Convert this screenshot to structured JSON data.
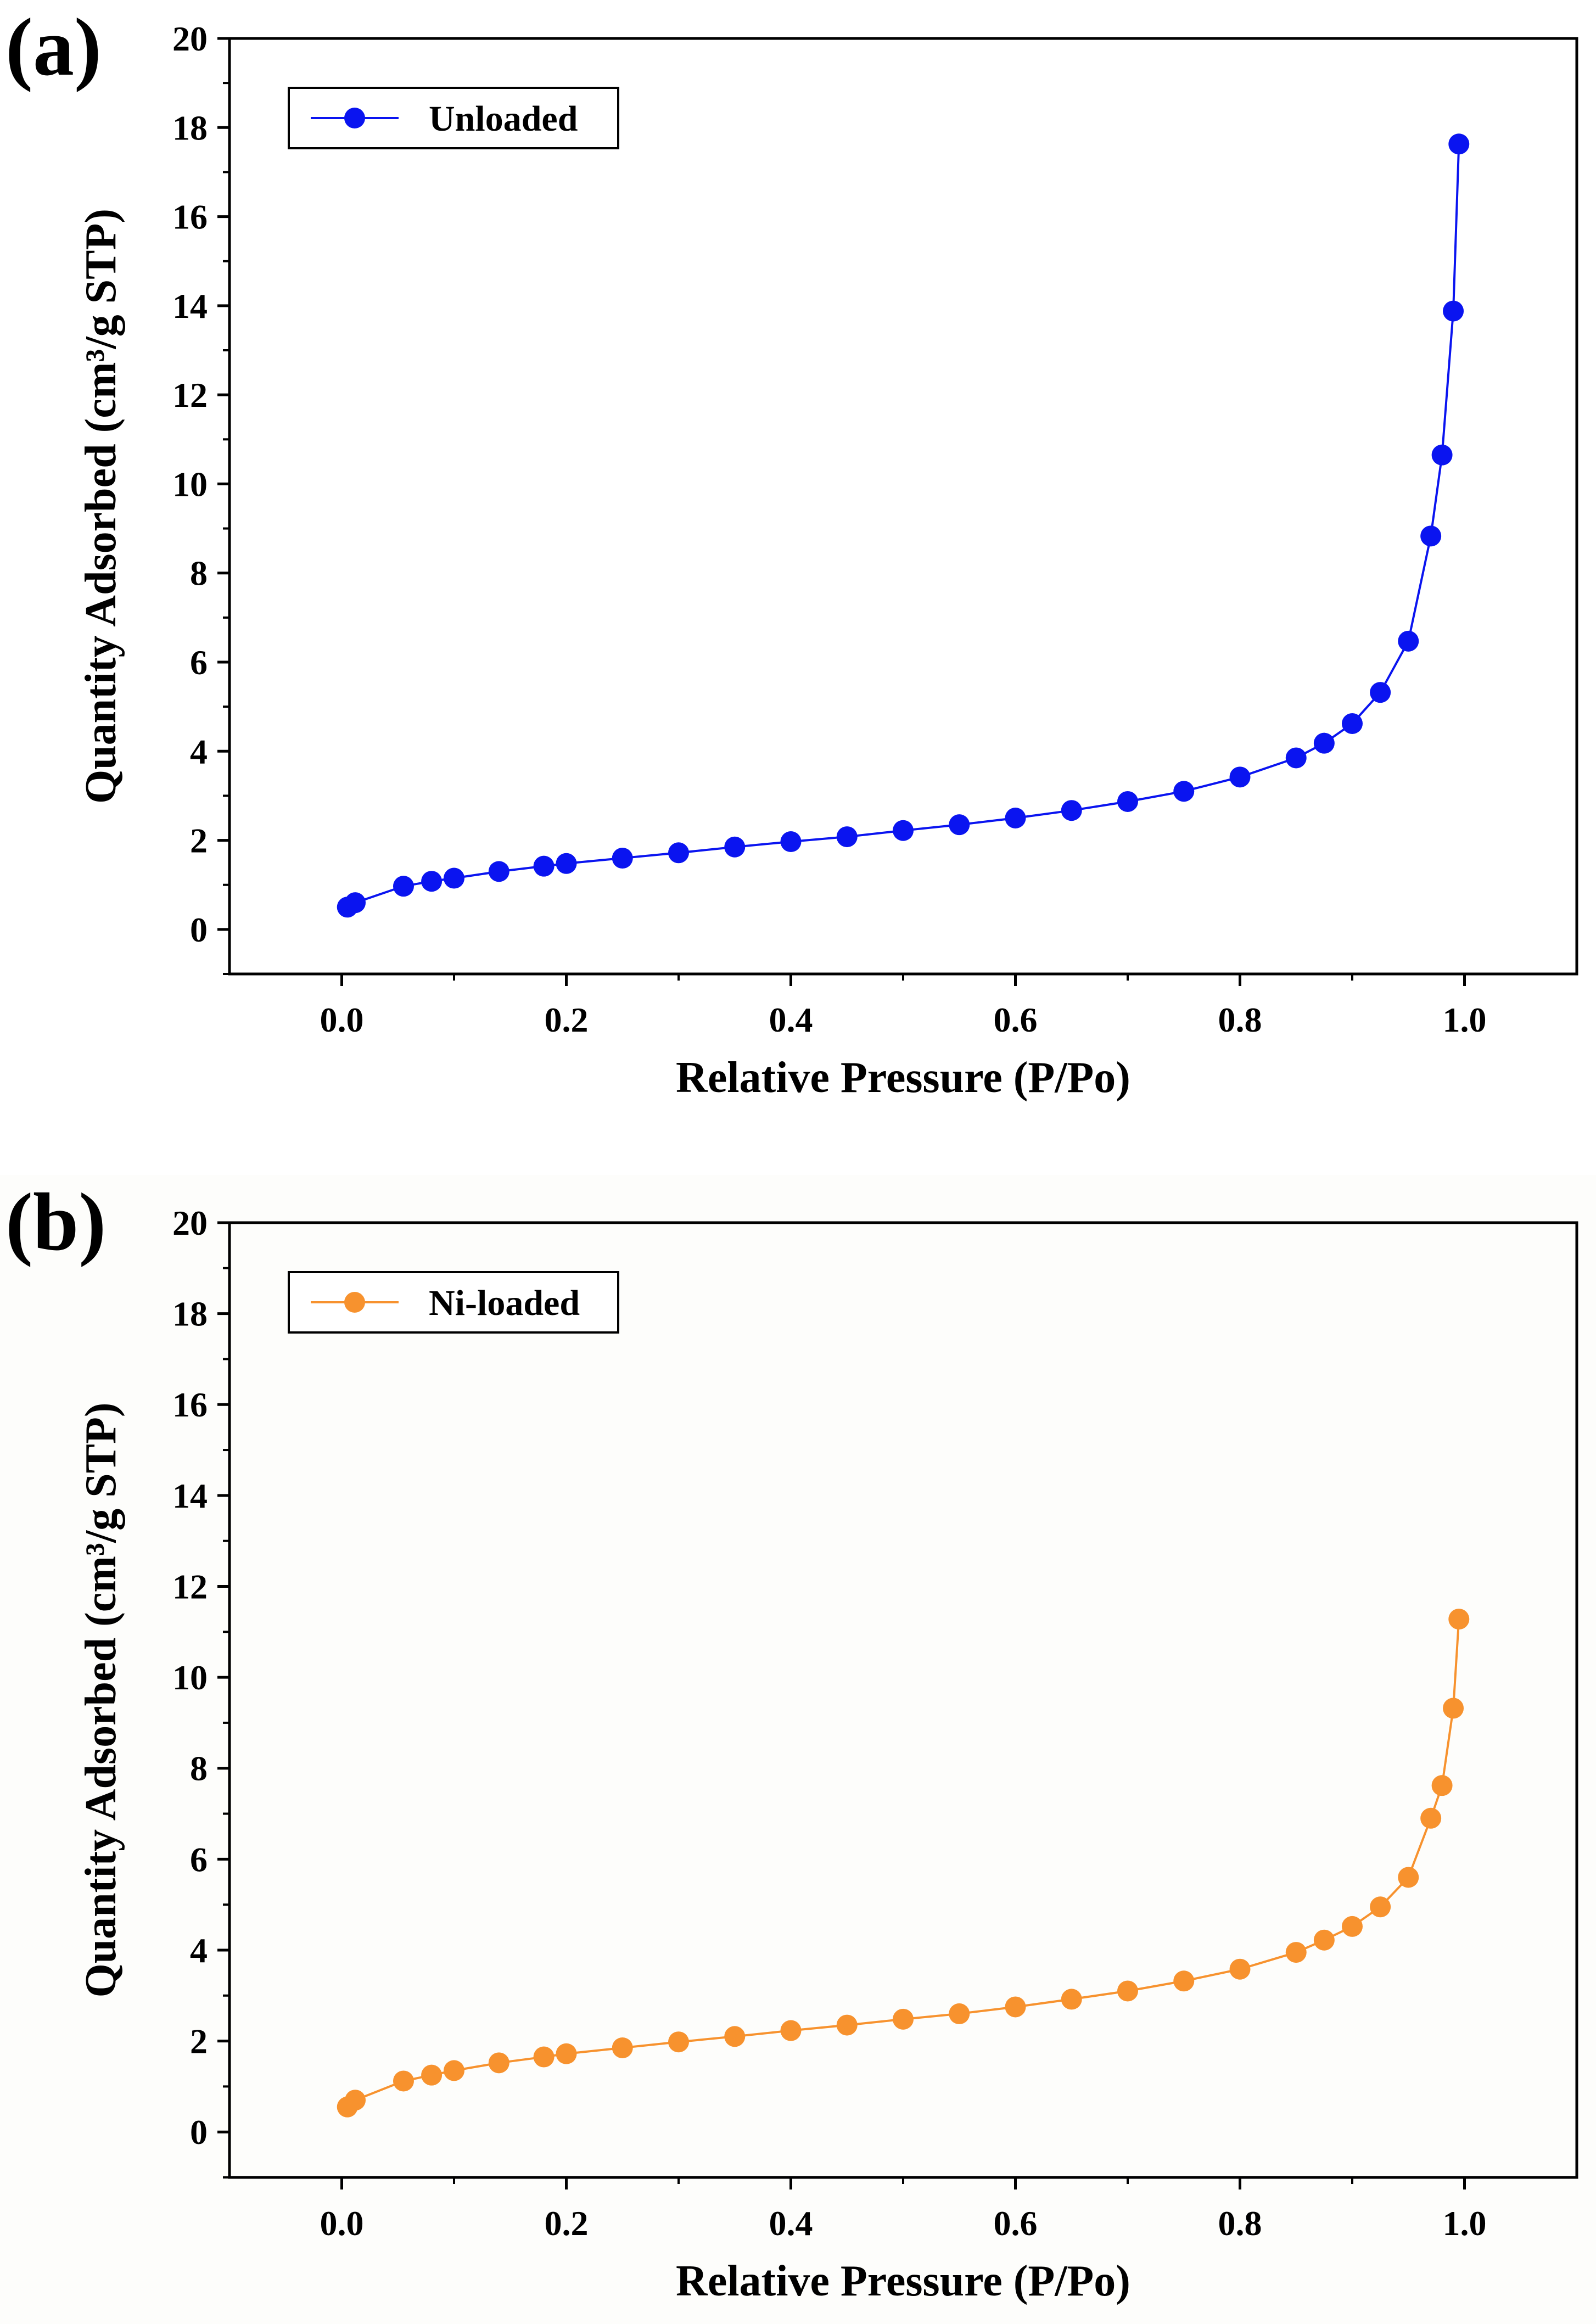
{
  "chart_data": [
    {
      "panel_label": "(a)",
      "type": "line",
      "title": "",
      "xlabel": "Relative Pressure (P/Po)",
      "ylabel": "Quantity Adsorbed (cm³/g STP)",
      "xlim": [
        -0.1,
        1.1
      ],
      "ylim": [
        -1,
        20
      ],
      "xticks": [
        0.0,
        0.2,
        0.4,
        0.6,
        0.8,
        1.0
      ],
      "xtick_labels": [
        "0.0",
        "0.2",
        "0.4",
        "0.6",
        "0.8",
        "1.0"
      ],
      "yticks": [
        0,
        2,
        4,
        6,
        8,
        10,
        12,
        14,
        16,
        18,
        20
      ],
      "ytick_labels": [
        "0",
        "2",
        "4",
        "6",
        "8",
        "10",
        "12",
        "14",
        "16",
        "18",
        "20"
      ],
      "legend_position": "top-left",
      "series": [
        {
          "name": "Unloaded",
          "color": "#0a14f0",
          "x": [
            0.005,
            0.012,
            0.055,
            0.08,
            0.1,
            0.14,
            0.18,
            0.2,
            0.25,
            0.3,
            0.35,
            0.4,
            0.45,
            0.5,
            0.55,
            0.6,
            0.65,
            0.7,
            0.75,
            0.8,
            0.85,
            0.875,
            0.9,
            0.925,
            0.95,
            0.97,
            0.98,
            0.99,
            0.995
          ],
          "y": [
            0.5,
            0.6,
            0.97,
            1.08,
            1.15,
            1.3,
            1.42,
            1.48,
            1.6,
            1.72,
            1.85,
            1.97,
            2.08,
            2.22,
            2.35,
            2.5,
            2.67,
            2.87,
            3.1,
            3.42,
            3.85,
            4.18,
            4.62,
            5.32,
            6.47,
            8.83,
            10.65,
            13.88,
            17.63
          ]
        }
      ]
    },
    {
      "panel_label": "(b)",
      "type": "line",
      "title": "",
      "xlabel": "Relative Pressure (P/Po)",
      "ylabel": "Quantity Adsorbed (cm³/g STP)",
      "xlim": [
        -0.1,
        1.1
      ],
      "ylim": [
        -1,
        20
      ],
      "xticks": [
        0.0,
        0.2,
        0.4,
        0.6,
        0.8,
        1.0
      ],
      "xtick_labels": [
        "0.0",
        "0.2",
        "0.4",
        "0.6",
        "0.8",
        "1.0"
      ],
      "yticks": [
        0,
        2,
        4,
        6,
        8,
        10,
        12,
        14,
        16,
        18,
        20
      ],
      "ytick_labels": [
        "0",
        "2",
        "4",
        "6",
        "8",
        "10",
        "12",
        "14",
        "16",
        "18",
        "20"
      ],
      "legend_position": "top-left",
      "series": [
        {
          "name": "Ni-loaded",
          "color": "#f7922e",
          "x": [
            0.005,
            0.012,
            0.055,
            0.08,
            0.1,
            0.14,
            0.18,
            0.2,
            0.25,
            0.3,
            0.35,
            0.4,
            0.45,
            0.5,
            0.55,
            0.6,
            0.65,
            0.7,
            0.75,
            0.8,
            0.85,
            0.875,
            0.9,
            0.925,
            0.95,
            0.97,
            0.98,
            0.99,
            0.995
          ],
          "y": [
            0.55,
            0.7,
            1.12,
            1.25,
            1.35,
            1.52,
            1.65,
            1.72,
            1.85,
            1.98,
            2.1,
            2.23,
            2.35,
            2.48,
            2.6,
            2.75,
            2.92,
            3.1,
            3.32,
            3.58,
            3.95,
            4.22,
            4.52,
            4.95,
            5.6,
            6.9,
            7.62,
            9.32,
            11.28
          ]
        }
      ]
    }
  ]
}
